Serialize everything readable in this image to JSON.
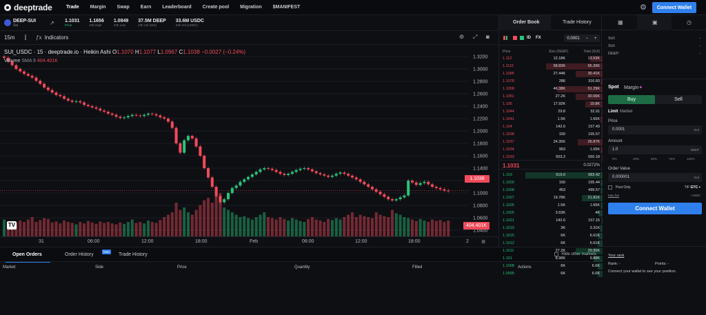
{
  "brand": {
    "name": "deeptrade"
  },
  "nav": {
    "items": [
      "Trade",
      "Margin",
      "Swap",
      "Earn",
      "Leaderboard",
      "Create pool",
      "Migration",
      "$MANIFEST"
    ],
    "connect_label": "Connect Wallet"
  },
  "ticker": {
    "pair": "DEEP-SUI",
    "pair_sub": "Sui",
    "stats": [
      {
        "value": "1.1031",
        "label": "Price"
      },
      {
        "value": "1.1656",
        "label": "24h High"
      },
      {
        "value": "1.0849",
        "label": "24h Low"
      },
      {
        "value": "37.5M DEEP",
        "label": "24h Vol (SUI)"
      },
      {
        "value": "33.6M USDC",
        "label": "24h Vol (USDC)"
      }
    ]
  },
  "chart_toolbar": {
    "interval": "15m",
    "indicators_label": "Indicators"
  },
  "chart_legend": {
    "symbol": "SUI_USDC · 15 · deeptrade.io · Heikin Ashi",
    "o_label": "O",
    "o": "1.1070",
    "h_label": "H",
    "h": "1.1077",
    "l_label": "L",
    "l": "1.0967",
    "c_label": "C",
    "c": "1.1038",
    "change": "−0.0027 (−0.24%)",
    "volume_label": "Volume",
    "volume_ma": "SMA 9",
    "volume_value": "404.401K"
  },
  "chart_data": {
    "type": "candlestick",
    "yticks": [
      "1.3200",
      "1.3000",
      "1.2800",
      "1.2600",
      "1.2400",
      "1.2200",
      "1.2000",
      "1.1800",
      "1.1600",
      "1.1400",
      "1.1200",
      "1.1000",
      "1.0800",
      "1.0600",
      "1.0400"
    ],
    "ylim": [
      1.03,
      1.33
    ],
    "xticks": [
      "31",
      "06:00",
      "12:00",
      "18:00",
      "Feb",
      "06:00",
      "12:00",
      "18:00",
      "2"
    ],
    "last_price": "1.1038",
    "last_volume": "404.401K",
    "close_series": [
      1.318,
      1.312,
      1.306,
      1.3,
      1.296,
      1.292,
      1.289,
      1.286,
      1.281,
      1.276,
      1.27,
      1.266,
      1.262,
      1.258,
      1.256,
      1.252,
      1.249,
      1.247,
      1.248,
      1.246,
      1.242,
      1.24,
      1.238,
      1.236,
      1.233,
      1.231,
      1.228,
      1.226,
      1.223,
      1.221,
      1.222,
      1.224,
      1.226,
      1.225,
      1.224,
      1.226,
      1.228,
      1.227,
      1.225,
      1.222,
      1.22,
      1.215,
      1.205,
      1.18,
      1.165,
      1.185,
      1.192,
      1.188,
      1.175,
      1.16,
      1.14,
      1.125,
      1.11,
      1.095,
      1.085,
      1.09,
      1.1,
      1.108,
      1.112,
      1.118,
      1.122,
      1.126,
      1.13,
      1.134,
      1.138,
      1.14,
      1.139,
      1.137,
      1.134,
      1.131,
      1.129,
      1.131,
      1.134,
      1.137,
      1.139,
      1.14,
      1.138,
      1.135,
      1.132,
      1.13,
      1.128,
      1.126,
      1.128,
      1.131,
      1.133,
      1.131,
      1.128,
      1.125,
      1.122,
      1.118,
      1.114,
      1.11,
      1.106,
      1.102,
      1.098,
      1.094,
      1.09,
      1.088,
      1.09,
      1.093,
      1.096,
      1.12,
      1.117,
      1.113,
      1.116,
      1.118,
      1.114,
      1.11,
      1.108,
      1.106,
      1.104,
      1.103
    ],
    "volumes": [
      0.35,
      0.3,
      0.32,
      0.28,
      0.33,
      0.3,
      0.35,
      0.4,
      0.3,
      0.34,
      0.38,
      0.36,
      0.29,
      0.31,
      0.27,
      0.33,
      0.3,
      0.28,
      0.25,
      0.3,
      0.27,
      0.32,
      0.29,
      0.26,
      0.31,
      0.28,
      0.3,
      0.27,
      0.25,
      0.29,
      0.26,
      0.3,
      0.35,
      0.28,
      0.3,
      0.27,
      0.33,
      0.3,
      0.28,
      0.34,
      0.4,
      0.45,
      0.5,
      0.7,
      0.55,
      0.6,
      0.5,
      0.45,
      0.55,
      0.65,
      0.75,
      0.8,
      0.7,
      0.85,
      0.9,
      0.6,
      0.55,
      0.5,
      0.45,
      0.4,
      0.42,
      0.38,
      0.35,
      0.4,
      0.45,
      0.5,
      0.4,
      0.38,
      0.35,
      0.4,
      0.36,
      0.33,
      0.38,
      0.35,
      0.32,
      0.3,
      0.36,
      0.4,
      0.35,
      0.33,
      0.3,
      0.36,
      0.34,
      0.38,
      0.35,
      0.4,
      0.45,
      0.5,
      0.4,
      0.45,
      0.42,
      0.4,
      0.38,
      0.5,
      0.45,
      0.42,
      0.4,
      0.55,
      0.48,
      0.45,
      0.4,
      0.38,
      0.35,
      0.32,
      0.36,
      0.33,
      0.3,
      0.35,
      0.32,
      0.34,
      0.3,
      0.33
    ],
    "vlim": [
      0,
      1
    ]
  },
  "bottom_tabs": {
    "items": [
      "Open Orders",
      "Order History",
      "Trade History"
    ],
    "beta": "beta",
    "hide_other": "Hide other markets",
    "columns": [
      "Market",
      "Side",
      "Price",
      "Quantity",
      "Filled",
      "Actions"
    ]
  },
  "orderbook": {
    "tabs": [
      "Order Book",
      "Trade History"
    ],
    "modes": [
      "ID",
      "FX"
    ],
    "step": "0.0001",
    "step_minus": "−",
    "step_plus": "+",
    "headers": [
      "Price",
      "Size (DEEP)",
      "Total (SUI)"
    ],
    "asks": [
      {
        "price": "1.112",
        "size": "12.18K",
        "total": "13.53K",
        "depth": 0.12
      },
      {
        "price": "1.1115",
        "size": "58.83K",
        "total": "65.39K",
        "depth": 0.55
      },
      {
        "price": "1.1085",
        "size": "27.44K",
        "total": "30.41K",
        "depth": 0.26
      },
      {
        "price": "1.1078",
        "size": "286",
        "total": "316.83",
        "depth": 0.02
      },
      {
        "price": "1.1058",
        "size": "46.38K",
        "total": "51.29K",
        "depth": 0.44
      },
      {
        "price": "1.1051",
        "size": "27.2K",
        "total": "30.06K",
        "depth": 0.26
      },
      {
        "price": "1.105",
        "size": "17.92K",
        "total": "19.8K",
        "depth": 0.17
      },
      {
        "price": "1.1044",
        "size": "29.8",
        "total": "32.91",
        "depth": 0.01
      },
      {
        "price": "1.1041",
        "size": "1.5K",
        "total": "1.66K",
        "depth": 0.02
      },
      {
        "price": "1.104",
        "size": "142.6",
        "total": "157.43",
        "depth": 0.01
      },
      {
        "price": "1.1038",
        "size": "150",
        "total": "165.57",
        "depth": 0.01
      },
      {
        "price": "1.1037",
        "size": "24.35K",
        "total": "26.87K",
        "depth": 0.24
      },
      {
        "price": "1.1034",
        "size": "953",
        "total": "1.05K",
        "depth": 0.02
      },
      {
        "price": "1.1033",
        "size": "503.2",
        "total": "555.18",
        "depth": 0.01
      }
    ],
    "mid_price": "1.1031",
    "spread": "0.0272%",
    "bids": [
      {
        "price": "1.103",
        "size": "619.6",
        "total": "683.42",
        "depth": 0.75
      },
      {
        "price": "1.1029",
        "size": "150",
        "total": "165.44",
        "depth": 0.02
      },
      {
        "price": "1.1028",
        "size": "453",
        "total": "499.57",
        "depth": 0.02
      },
      {
        "price": "1.1027",
        "size": "19.78K",
        "total": "21.81K",
        "depth": 0.2
      },
      {
        "price": "1.1026",
        "size": "1.5K",
        "total": "1.65K",
        "depth": 0.02
      },
      {
        "price": "1.1025",
        "size": "3.63K",
        "total": "4K",
        "depth": 0.04
      },
      {
        "price": "1.1021",
        "size": "142.6",
        "total": "157.15",
        "depth": 0.01
      },
      {
        "price": "1.1019",
        "size": "3K",
        "total": "3.31K",
        "depth": 0.03
      },
      {
        "price": "1.1015",
        "size": "6K",
        "total": "6.61K",
        "depth": 0.05
      },
      {
        "price": "1.1012",
        "size": "6K",
        "total": "6.61K",
        "depth": 0.05
      },
      {
        "price": "1.1011",
        "size": "27.2K",
        "total": "29.95K",
        "depth": 0.26
      },
      {
        "price": "1.101",
        "size": "8.98K",
        "total": "9.88K",
        "depth": 0.09
      },
      {
        "price": "1.1008",
        "size": "6K",
        "total": "6.6K",
        "depth": 0.05
      },
      {
        "price": "1.0999",
        "size": "6K",
        "total": "6.6K",
        "depth": 0.05
      }
    ]
  },
  "right_panel": {
    "balances": [
      {
        "label": "SUI:",
        "value": "-"
      },
      {
        "label": "SUI:",
        "value": "-"
      },
      {
        "label": "DEEP:",
        "value": "-"
      }
    ],
    "spot": "Spot",
    "margin": "Margin",
    "buy": "Buy",
    "sell": "Sell",
    "limit": "Limit",
    "market": "Market",
    "price_label": "Price",
    "price_value": "0.0001",
    "price_unit": "SUI",
    "amount_label": "Amount",
    "amount_value": "1.0",
    "amount_unit": "DEEP",
    "pcts": [
      "0%",
      "25%",
      "50%",
      "75%",
      "100%"
    ],
    "order_value_label": "Order Value",
    "order_value": "0.000001",
    "order_value_unit": "SUI",
    "post_only": "Post Only",
    "tif_label": "TIF",
    "tif_value": "GTC",
    "max_fee": "Max fee",
    "max_fee_value": "- USDC",
    "connect_label": "Connect Wallet",
    "your_rank": "Your rank",
    "rank_label": "Rank: -",
    "points_label": "Points: -",
    "rank_msg": "Connect your wallet to see your position."
  }
}
